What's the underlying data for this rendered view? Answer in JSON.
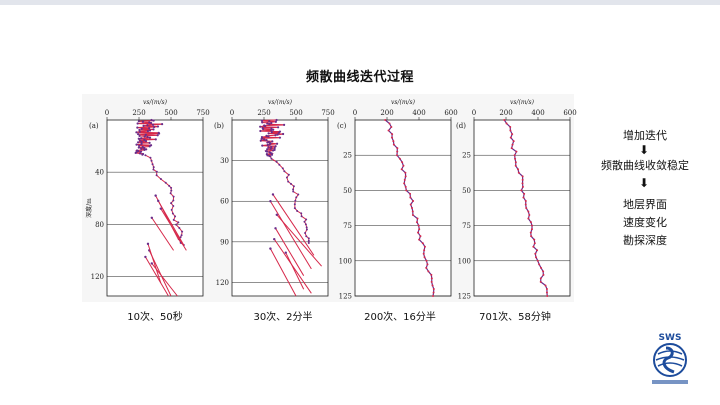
{
  "title": "频散曲线迭代过程",
  "xlabel": "vs/(m/s)",
  "ylabel": "深度/m",
  "panels": [
    {
      "letter": "(a)",
      "caption": "10次、50秒",
      "xticks": [
        0,
        250,
        500,
        750
      ],
      "yticks": [
        40,
        80,
        120
      ],
      "ymax": 135,
      "xmax": 750
    },
    {
      "letter": "(b)",
      "caption": "30次、2分半",
      "xticks": [
        0,
        250,
        500,
        750
      ],
      "yticks": [
        30,
        60,
        90,
        120
      ],
      "ymax": 130,
      "xmax": 750
    },
    {
      "letter": "(c)",
      "caption": "200次、16分半",
      "xticks": [
        0,
        200,
        400,
        600
      ],
      "yticks": [
        25,
        50,
        75,
        100,
        125
      ],
      "ymax": 125,
      "xmax": 600
    },
    {
      "letter": "(d)",
      "caption": "701次、58分钟",
      "xticks": [
        0,
        200,
        400,
        600
      ],
      "yticks": [
        25,
        50,
        75,
        100,
        125
      ],
      "ymax": 125,
      "xmax": 600
    }
  ],
  "flow": [
    "增加迭代",
    "频散曲线收敛稳定",
    "地层界面",
    "速度变化",
    "勘探深度"
  ],
  "logo_text": "SWS",
  "colors": {
    "red": "#d6284a",
    "purple": "#6a2d8a",
    "grid": "#222222"
  }
}
